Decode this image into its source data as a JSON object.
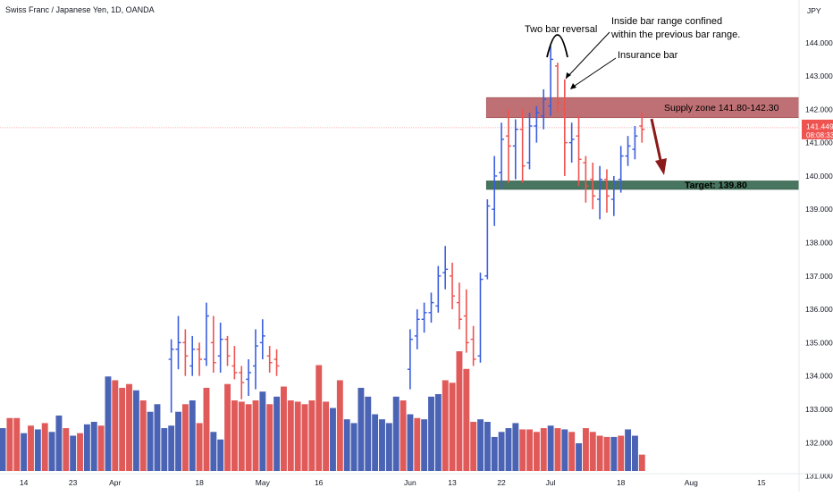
{
  "chart_title": "Swiss Franc / Japanese Yen, 1D, OANDA",
  "currency_label": "JPY",
  "current_price_label": "141.449",
  "countdown_label": "08:08:33",
  "colors": {
    "up": "#3a5ee0",
    "down": "#ef5350",
    "volume_up": "#4a63b5",
    "volume_down": "#e05a5a",
    "supply_zone": "#b5585c",
    "target_zone": "#3f6e57",
    "arrow": "#8b1a1a",
    "price_tag": "#ef5350"
  },
  "chart_data": {
    "type": "ohlc",
    "ylim": [
      130.8,
      145.2
    ],
    "y_ticks": [
      "131.000",
      "132.000",
      "133.000",
      "134.000",
      "135.000",
      "136.000",
      "137.000",
      "138.000",
      "139.000",
      "140.000",
      "141.000",
      "142.000",
      "143.000",
      "144.000"
    ],
    "x_ticks": [
      {
        "label": "14",
        "bar": 3
      },
      {
        "label": "23",
        "bar": 10
      },
      {
        "label": "Apr",
        "bar": 16
      },
      {
        "label": "18",
        "bar": 28
      },
      {
        "label": "May",
        "bar": 37
      },
      {
        "label": "16",
        "bar": 45
      },
      {
        "label": "Jun",
        "bar": 58
      },
      {
        "label": "13",
        "bar": 64
      },
      {
        "label": "22",
        "bar": 71
      },
      {
        "label": "Jul",
        "bar": 78
      },
      {
        "label": "18",
        "bar": 88
      },
      {
        "label": "Aug",
        "bar": 98
      },
      {
        "label": "15",
        "bar": 108
      }
    ],
    "price_bars": [
      {
        "i": 24,
        "o": 134.5,
        "h": 135.1,
        "l": 132.9,
        "c": 134.8
      },
      {
        "i": 25,
        "o": 134.8,
        "h": 135.8,
        "l": 134.2,
        "c": 135.0
      },
      {
        "i": 26,
        "o": 135.0,
        "h": 135.4,
        "l": 134.0,
        "c": 134.6
      },
      {
        "i": 27,
        "o": 134.3,
        "h": 135.2,
        "l": 134.0,
        "c": 134.8
      },
      {
        "i": 28,
        "o": 134.8,
        "h": 135.0,
        "l": 134.0,
        "c": 134.5
      },
      {
        "i": 29,
        "o": 134.5,
        "h": 136.2,
        "l": 134.3,
        "c": 135.8
      },
      {
        "i": 30,
        "o": 135.0,
        "h": 135.8,
        "l": 134.1,
        "c": 134.4
      },
      {
        "i": 31,
        "o": 134.6,
        "h": 135.6,
        "l": 134.1,
        "c": 135.1
      },
      {
        "i": 32,
        "o": 135.1,
        "h": 135.2,
        "l": 134.3,
        "c": 134.6
      },
      {
        "i": 33,
        "o": 134.3,
        "h": 134.9,
        "l": 133.9,
        "c": 134.1
      },
      {
        "i": 34,
        "o": 134.1,
        "h": 134.3,
        "l": 133.3,
        "c": 133.8
      },
      {
        "i": 35,
        "o": 133.9,
        "h": 134.5,
        "l": 133.4,
        "c": 134.1
      },
      {
        "i": 36,
        "o": 134.3,
        "h": 135.4,
        "l": 133.6,
        "c": 134.9
      },
      {
        "i": 37,
        "o": 135.0,
        "h": 135.7,
        "l": 134.5,
        "c": 135.2
      },
      {
        "i": 38,
        "o": 134.6,
        "h": 134.9,
        "l": 134.1,
        "c": 134.4
      },
      {
        "i": 39,
        "o": 134.5,
        "h": 134.8,
        "l": 134.0,
        "c": 134.3
      },
      {
        "i": 58,
        "o": 134.2,
        "h": 135.4,
        "l": 133.6,
        "c": 135.1
      },
      {
        "i": 59,
        "o": 135.2,
        "h": 136.0,
        "l": 134.8,
        "c": 135.7
      },
      {
        "i": 60,
        "o": 135.7,
        "h": 136.2,
        "l": 135.3,
        "c": 135.9
      },
      {
        "i": 61,
        "o": 135.9,
        "h": 136.5,
        "l": 135.6,
        "c": 136.2
      },
      {
        "i": 62,
        "o": 136.1,
        "h": 137.3,
        "l": 135.9,
        "c": 137.0
      },
      {
        "i": 63,
        "o": 137.1,
        "h": 137.9,
        "l": 136.6,
        "c": 137.2
      },
      {
        "i": 64,
        "o": 137.0,
        "h": 137.4,
        "l": 136.0,
        "c": 136.4
      },
      {
        "i": 65,
        "o": 136.2,
        "h": 136.8,
        "l": 135.4,
        "c": 135.7
      },
      {
        "i": 66,
        "o": 135.8,
        "h": 136.6,
        "l": 134.7,
        "c": 135.0
      },
      {
        "i": 67,
        "o": 135.1,
        "h": 135.5,
        "l": 134.3,
        "c": 134.5
      },
      {
        "i": 68,
        "o": 134.6,
        "h": 137.1,
        "l": 134.4,
        "c": 136.9
      },
      {
        "i": 69,
        "o": 137.0,
        "h": 139.3,
        "l": 136.9,
        "c": 139.1
      },
      {
        "i": 70,
        "o": 139.0,
        "h": 140.6,
        "l": 138.5,
        "c": 140.0
      },
      {
        "i": 71,
        "o": 140.1,
        "h": 141.6,
        "l": 139.6,
        "c": 141.1
      },
      {
        "i": 72,
        "o": 141.2,
        "h": 142.0,
        "l": 139.8,
        "c": 140.9
      },
      {
        "i": 73,
        "o": 140.9,
        "h": 141.7,
        "l": 139.9,
        "c": 141.4
      },
      {
        "i": 74,
        "o": 141.4,
        "h": 142.0,
        "l": 139.8,
        "c": 140.3
      },
      {
        "i": 75,
        "o": 140.4,
        "h": 141.9,
        "l": 140.2,
        "c": 141.5
      },
      {
        "i": 76,
        "o": 141.5,
        "h": 142.1,
        "l": 141.0,
        "c": 141.9
      },
      {
        "i": 77,
        "o": 141.8,
        "h": 142.6,
        "l": 141.4,
        "c": 142.3
      },
      {
        "i": 78,
        "o": 142.1,
        "h": 143.9,
        "l": 141.8,
        "c": 143.5
      },
      {
        "i": 79,
        "o": 143.3,
        "h": 143.4,
        "l": 141.9,
        "c": 142.2
      },
      {
        "i": 80,
        "o": 142.0,
        "h": 142.9,
        "l": 140.0,
        "c": 141.0
      },
      {
        "i": 81,
        "o": 141.0,
        "h": 141.6,
        "l": 140.4,
        "c": 141.1
      },
      {
        "i": 82,
        "o": 141.2,
        "h": 141.8,
        "l": 139.7,
        "c": 140.5
      },
      {
        "i": 83,
        "o": 140.4,
        "h": 140.6,
        "l": 139.2,
        "c": 139.7
      },
      {
        "i": 84,
        "o": 139.9,
        "h": 140.4,
        "l": 139.0,
        "c": 139.4
      },
      {
        "i": 85,
        "o": 139.3,
        "h": 140.3,
        "l": 138.7,
        "c": 139.9
      },
      {
        "i": 86,
        "o": 139.9,
        "h": 140.2,
        "l": 138.9,
        "c": 139.4
      },
      {
        "i": 87,
        "o": 139.3,
        "h": 140.0,
        "l": 138.8,
        "c": 139.8
      },
      {
        "i": 88,
        "o": 139.9,
        "h": 140.9,
        "l": 139.5,
        "c": 140.6
      },
      {
        "i": 89,
        "o": 140.6,
        "h": 141.2,
        "l": 140.3,
        "c": 140.9
      },
      {
        "i": 90,
        "o": 140.8,
        "h": 141.5,
        "l": 140.5,
        "c": 141.2
      },
      {
        "i": 91,
        "o": 141.5,
        "h": 141.9,
        "l": 141.0,
        "c": 141.4
      }
    ],
    "volume": [
      {
        "i": 0,
        "v": 0.34,
        "d": "up"
      },
      {
        "i": 1,
        "v": 0.42,
        "d": "down"
      },
      {
        "i": 2,
        "v": 0.42,
        "d": "down"
      },
      {
        "i": 3,
        "v": 0.3,
        "d": "up"
      },
      {
        "i": 4,
        "v": 0.36,
        "d": "down"
      },
      {
        "i": 5,
        "v": 0.33,
        "d": "up"
      },
      {
        "i": 6,
        "v": 0.38,
        "d": "down"
      },
      {
        "i": 7,
        "v": 0.31,
        "d": "up"
      },
      {
        "i": 8,
        "v": 0.44,
        "d": "up"
      },
      {
        "i": 9,
        "v": 0.34,
        "d": "down"
      },
      {
        "i": 10,
        "v": 0.28,
        "d": "up"
      },
      {
        "i": 11,
        "v": 0.3,
        "d": "down"
      },
      {
        "i": 12,
        "v": 0.37,
        "d": "up"
      },
      {
        "i": 13,
        "v": 0.39,
        "d": "up"
      },
      {
        "i": 14,
        "v": 0.36,
        "d": "down"
      },
      {
        "i": 15,
        "v": 0.75,
        "d": "up"
      },
      {
        "i": 16,
        "v": 0.72,
        "d": "down"
      },
      {
        "i": 17,
        "v": 0.66,
        "d": "down"
      },
      {
        "i": 18,
        "v": 0.69,
        "d": "down"
      },
      {
        "i": 19,
        "v": 0.64,
        "d": "up"
      },
      {
        "i": 20,
        "v": 0.56,
        "d": "down"
      },
      {
        "i": 21,
        "v": 0.47,
        "d": "up"
      },
      {
        "i": 22,
        "v": 0.53,
        "d": "up"
      },
      {
        "i": 23,
        "v": 0.34,
        "d": "up"
      },
      {
        "i": 24,
        "v": 0.36,
        "d": "up"
      },
      {
        "i": 25,
        "v": 0.47,
        "d": "up"
      },
      {
        "i": 26,
        "v": 0.53,
        "d": "down"
      },
      {
        "i": 27,
        "v": 0.56,
        "d": "up"
      },
      {
        "i": 28,
        "v": 0.38,
        "d": "down"
      },
      {
        "i": 29,
        "v": 0.66,
        "d": "down"
      },
      {
        "i": 30,
        "v": 0.31,
        "d": "up"
      },
      {
        "i": 31,
        "v": 0.25,
        "d": "up"
      },
      {
        "i": 32,
        "v": 0.69,
        "d": "down"
      },
      {
        "i": 33,
        "v": 0.56,
        "d": "down"
      },
      {
        "i": 34,
        "v": 0.55,
        "d": "down"
      },
      {
        "i": 35,
        "v": 0.53,
        "d": "down"
      },
      {
        "i": 36,
        "v": 0.56,
        "d": "down"
      },
      {
        "i": 37,
        "v": 0.63,
        "d": "up"
      },
      {
        "i": 38,
        "v": 0.53,
        "d": "down"
      },
      {
        "i": 39,
        "v": 0.59,
        "d": "up"
      },
      {
        "i": 40,
        "v": 0.67,
        "d": "down"
      },
      {
        "i": 41,
        "v": 0.56,
        "d": "down"
      },
      {
        "i": 42,
        "v": 0.55,
        "d": "down"
      },
      {
        "i": 43,
        "v": 0.53,
        "d": "down"
      },
      {
        "i": 44,
        "v": 0.56,
        "d": "down"
      },
      {
        "i": 45,
        "v": 0.84,
        "d": "down"
      },
      {
        "i": 46,
        "v": 0.55,
        "d": "down"
      },
      {
        "i": 47,
        "v": 0.5,
        "d": "up"
      },
      {
        "i": 48,
        "v": 0.72,
        "d": "down"
      },
      {
        "i": 49,
        "v": 0.41,
        "d": "up"
      },
      {
        "i": 50,
        "v": 0.38,
        "d": "up"
      },
      {
        "i": 51,
        "v": 0.66,
        "d": "up"
      },
      {
        "i": 52,
        "v": 0.59,
        "d": "up"
      },
      {
        "i": 53,
        "v": 0.45,
        "d": "up"
      },
      {
        "i": 54,
        "v": 0.41,
        "d": "up"
      },
      {
        "i": 55,
        "v": 0.38,
        "d": "up"
      },
      {
        "i": 56,
        "v": 0.59,
        "d": "up"
      },
      {
        "i": 57,
        "v": 0.56,
        "d": "down"
      },
      {
        "i": 58,
        "v": 0.45,
        "d": "up"
      },
      {
        "i": 59,
        "v": 0.42,
        "d": "down"
      },
      {
        "i": 60,
        "v": 0.41,
        "d": "up"
      },
      {
        "i": 61,
        "v": 0.59,
        "d": "up"
      },
      {
        "i": 62,
        "v": 0.61,
        "d": "up"
      },
      {
        "i": 63,
        "v": 0.72,
        "d": "down"
      },
      {
        "i": 64,
        "v": 0.7,
        "d": "down"
      },
      {
        "i": 65,
        "v": 0.95,
        "d": "down"
      },
      {
        "i": 66,
        "v": 0.81,
        "d": "down"
      },
      {
        "i": 67,
        "v": 0.39,
        "d": "down"
      },
      {
        "i": 68,
        "v": 0.41,
        "d": "up"
      },
      {
        "i": 69,
        "v": 0.39,
        "d": "up"
      },
      {
        "i": 70,
        "v": 0.27,
        "d": "up"
      },
      {
        "i": 71,
        "v": 0.31,
        "d": "up"
      },
      {
        "i": 72,
        "v": 0.34,
        "d": "up"
      },
      {
        "i": 73,
        "v": 0.38,
        "d": "up"
      },
      {
        "i": 74,
        "v": 0.33,
        "d": "down"
      },
      {
        "i": 75,
        "v": 0.33,
        "d": "down"
      },
      {
        "i": 76,
        "v": 0.31,
        "d": "down"
      },
      {
        "i": 77,
        "v": 0.34,
        "d": "down"
      },
      {
        "i": 78,
        "v": 0.36,
        "d": "up"
      },
      {
        "i": 79,
        "v": 0.34,
        "d": "down"
      },
      {
        "i": 80,
        "v": 0.33,
        "d": "up"
      },
      {
        "i": 81,
        "v": 0.31,
        "d": "down"
      },
      {
        "i": 82,
        "v": 0.22,
        "d": "up"
      },
      {
        "i": 83,
        "v": 0.34,
        "d": "down"
      },
      {
        "i": 84,
        "v": 0.31,
        "d": "down"
      },
      {
        "i": 85,
        "v": 0.28,
        "d": "down"
      },
      {
        "i": 86,
        "v": 0.27,
        "d": "down"
      },
      {
        "i": 87,
        "v": 0.27,
        "d": "up"
      },
      {
        "i": 88,
        "v": 0.28,
        "d": "down"
      },
      {
        "i": 89,
        "v": 0.33,
        "d": "up"
      },
      {
        "i": 90,
        "v": 0.28,
        "d": "up"
      },
      {
        "i": 91,
        "v": 0.13,
        "d": "down"
      }
    ],
    "current_price": 141.449,
    "zones": [
      {
        "label": "Supply zone 141.80-142.30",
        "y_low": 141.75,
        "y_high": 142.35,
        "start_bar": 69,
        "color_key": "supply_zone"
      },
      {
        "label": "Target: 139.80",
        "y_low": 139.6,
        "y_high": 139.85,
        "start_bar": 69,
        "color_key": "target_zone"
      }
    ],
    "annotations": {
      "two_bar_reversal": "Two bar reversal",
      "inside_bar_line1": "Inside bar range confined",
      "inside_bar_line2": "within the previous bar range.",
      "insurance_bar": "Insurance bar"
    }
  }
}
